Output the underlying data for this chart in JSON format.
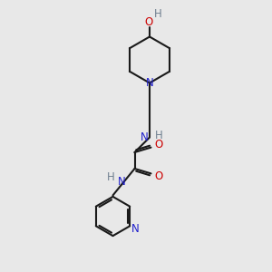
{
  "bg_color": "#e8e8e8",
  "bond_color": "#1a1a1a",
  "n_color": "#2020cc",
  "o_color": "#cc0000",
  "h_color": "#708090",
  "line_width": 1.5,
  "font_size": 8.5,
  "fig_size": [
    3.0,
    3.0
  ],
  "dpi": 100,
  "xlim": [
    0,
    10
  ],
  "ylim": [
    0,
    10
  ]
}
